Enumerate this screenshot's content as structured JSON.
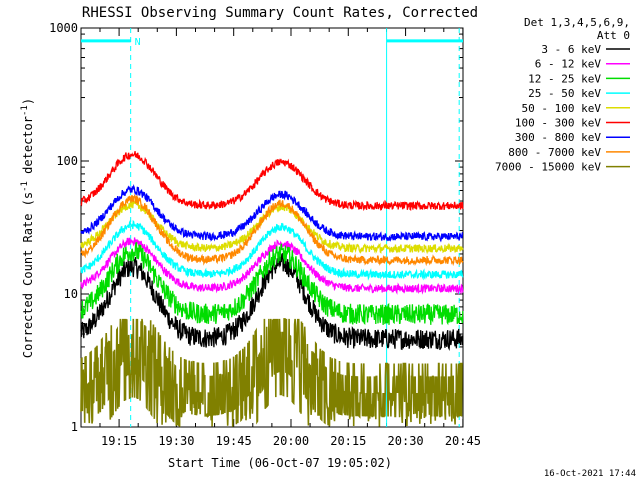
{
  "chart_data": {
    "type": "line",
    "title": "RHESSI Observing Summary Count Rates, Corrected",
    "xlabel": "Start Time (06-Oct-07 19:05:02)",
    "ylabel_html": "Corrected Count Rate (s<tspan baseline-shift=\"super\" font-size=\"9\">-1</tspan> detector<tspan baseline-shift=\"super\" font-size=\"9\">-1</tspan>)",
    "ylabel": "Corrected Count Rate (s-1 detector-1)",
    "x_range_minutes_after_start": [
      0,
      100
    ],
    "y_scale": "log",
    "ylim": [
      1,
      1000
    ],
    "y_ticks": [
      {
        "value": 1,
        "label": "1"
      },
      {
        "value": 10,
        "label": "10"
      },
      {
        "value": 100,
        "label": "100"
      },
      {
        "value": 1000,
        "label": "1000"
      }
    ],
    "x_ticks": [
      {
        "t": 9.97,
        "label": "19:15"
      },
      {
        "t": 24.97,
        "label": "19:30"
      },
      {
        "t": 39.97,
        "label": "19:45"
      },
      {
        "t": 54.97,
        "label": "20:00"
      },
      {
        "t": 69.97,
        "label": "20:15"
      },
      {
        "t": 84.97,
        "label": "20:30"
      },
      {
        "t": 99.97,
        "label": "20:45"
      }
    ],
    "legend_header": [
      "Det 1,3,4,5,6,9,",
      "Att 0"
    ],
    "legend_position": "outside-right",
    "series": [
      {
        "name": "3 - 6 keV",
        "color": "#000000",
        "night": 4.6,
        "peak1": 16,
        "peak2": 17
      },
      {
        "name": "6 - 12 keV",
        "color": "#ff00ff",
        "night": 11,
        "peak1": 25,
        "peak2": 24
      },
      {
        "name": "12 - 25 keV",
        "color": "#00dd00",
        "night": 7,
        "peak1": 21,
        "peak2": 20
      },
      {
        "name": "25 - 50 keV",
        "color": "#00ffff",
        "night": 14,
        "peak1": 33,
        "peak2": 32
      },
      {
        "name": "50 - 100 keV",
        "color": "#dddd00",
        "night": 22,
        "peak1": 47,
        "peak2": 45
      },
      {
        "name": "100 - 300 keV",
        "color": "#ff0000",
        "night": 46,
        "peak1": 112,
        "peak2": 98
      },
      {
        "name": "300 - 800 keV",
        "color": "#0000ff",
        "night": 27,
        "peak1": 61,
        "peak2": 56
      },
      {
        "name": "800 - 7000 keV",
        "color": "#ff8800",
        "night": 18,
        "peak1": 52,
        "peak2": 48
      },
      {
        "name": "7000 - 15000 keV",
        "color": "#808000",
        "night": 1.8,
        "peak1": 5,
        "peak2": 5.2
      }
    ],
    "saa_bars": [
      [
        0,
        13
      ],
      [
        80,
        100
      ]
    ],
    "saa_bar_value": 800,
    "saa_vlines_t": [
      13,
      80,
      99
    ],
    "dashed_vlines_t": [
      13,
      99
    ],
    "solid_vlines_t": [
      80
    ],
    "night_label": "N",
    "curve_peak_times": [
      13.5,
      52.5
    ],
    "gap_start_t": 80
  },
  "footer": {
    "date": "16-Oct-2021 17:44"
  },
  "colors": {
    "background": "#ffffff",
    "axes": "#000000",
    "saa": "#00ffff"
  }
}
